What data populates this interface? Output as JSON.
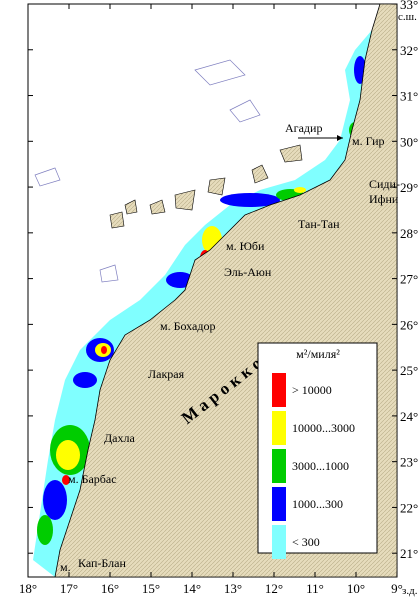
{
  "map": {
    "xlim": [
      18,
      9
    ],
    "ylim": [
      20.48,
      33
    ],
    "x_axis": {
      "ticks": [
        {
          "value": 18,
          "label": "18°"
        },
        {
          "value": 17,
          "label": "17°"
        },
        {
          "value": 16,
          "label": "16°"
        },
        {
          "value": 15,
          "label": "15°"
        },
        {
          "value": 14,
          "label": "14°"
        },
        {
          "value": 13,
          "label": "13°"
        },
        {
          "value": 12,
          "label": "12°"
        },
        {
          "value": 11,
          "label": "11°"
        },
        {
          "value": 10,
          "label": "10°"
        },
        {
          "value": 9,
          "label": "9°"
        }
      ],
      "unit": "з.д."
    },
    "y_axis": {
      "ticks": [
        {
          "value": 21,
          "label": "21°"
        },
        {
          "value": 22,
          "label": "22°"
        },
        {
          "value": 23,
          "label": "23°"
        },
        {
          "value": 24,
          "label": "24°"
        },
        {
          "value": 25,
          "label": "25°"
        },
        {
          "value": 26,
          "label": "26°"
        },
        {
          "value": 27,
          "label": "27°"
        },
        {
          "value": 28,
          "label": "28°"
        },
        {
          "value": 29,
          "label": "29°"
        },
        {
          "value": 30,
          "label": "30°"
        },
        {
          "value": 31,
          "label": "31°"
        },
        {
          "value": 32,
          "label": "32°"
        },
        {
          "value": 33,
          "label": "33°"
        }
      ],
      "unit": "с.ш."
    },
    "country": "М а р о к к о",
    "places": {
      "gir": "м. Гир",
      "agadir": "Агадир",
      "sidi_ifni": [
        "Сиди-",
        "Ифни"
      ],
      "tan_tan": "Тан-Тан",
      "yubi": "м. Юби",
      "el_ayun": "Эль-Аюн",
      "bohador": "м. Бохадор",
      "lakraya": "Лакрая",
      "dakhla": "Дахла",
      "barbas": "м. Барбас",
      "kap_blan": [
        "м.",
        "Кап-Блан"
      ]
    },
    "legend": {
      "title": "м²/миля²",
      "items": [
        {
          "label": "> 10000",
          "color": "#ff0000"
        },
        {
          "label": "10000...3000",
          "color": "#ffff00"
        },
        {
          "label": "3000...1000",
          "color": "#00cc00"
        },
        {
          "label": "1000...300",
          "color": "#0000ff"
        },
        {
          "label": "< 300",
          "color": "#80ffff"
        }
      ]
    }
  }
}
